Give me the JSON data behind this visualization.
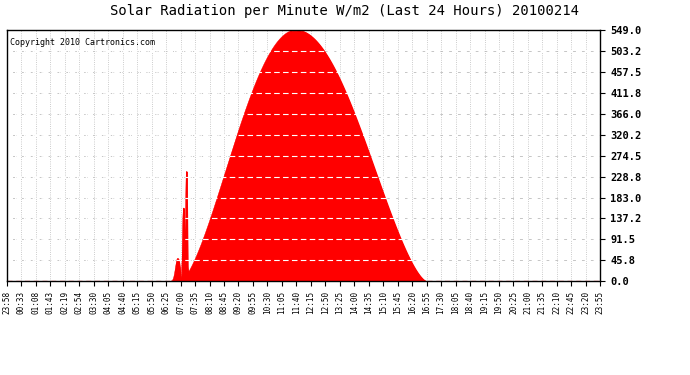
{
  "title": "Solar Radiation per Minute W/m2 (Last 24 Hours) 20100214",
  "copyright": "Copyright 2010 Cartronics.com",
  "bg_color": "#ffffff",
  "plot_bg_color": "#ffffff",
  "fill_color": "#ff0000",
  "line_color": "#ff0000",
  "grid_color_h": "#cccccc",
  "grid_color_v": "#cccccc",
  "dashed_line_color": "#ff0000",
  "ytick_labels": [
    "0.0",
    "45.8",
    "91.5",
    "137.2",
    "183.0",
    "228.8",
    "274.5",
    "320.2",
    "366.0",
    "411.8",
    "457.5",
    "503.2",
    "549.0"
  ],
  "ytick_values": [
    0.0,
    45.8,
    91.5,
    137.2,
    183.0,
    228.8,
    274.5,
    320.2,
    366.0,
    411.8,
    457.5,
    503.2,
    549.0
  ],
  "ymax": 549.0,
  "ymin": 0.0,
  "xtick_labels": [
    "23:58",
    "00:33",
    "01:08",
    "01:43",
    "02:19",
    "02:54",
    "03:30",
    "04:05",
    "04:40",
    "05:15",
    "05:50",
    "06:25",
    "07:00",
    "07:35",
    "08:10",
    "08:45",
    "09:20",
    "09:55",
    "10:30",
    "11:05",
    "11:40",
    "12:15",
    "12:50",
    "13:25",
    "14:00",
    "14:35",
    "15:10",
    "15:45",
    "16:20",
    "16:55",
    "17:30",
    "18:05",
    "18:40",
    "19:15",
    "19:50",
    "20:25",
    "21:00",
    "21:35",
    "22:10",
    "22:45",
    "23:20",
    "23:55"
  ],
  "num_points": 1440,
  "peak_value": 549.0
}
